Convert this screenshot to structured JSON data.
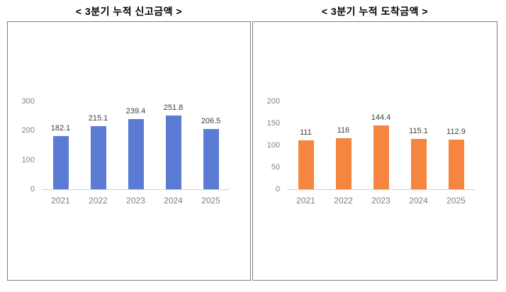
{
  "chart_data": [
    {
      "type": "bar",
      "title": "<  3분기  누적  신고금액  >",
      "categories": [
        "2021",
        "2022",
        "2023",
        "2024",
        "2025"
      ],
      "values": [
        182.1,
        215.1,
        239.4,
        251.8,
        206.5
      ],
      "value_labels": [
        "182.1",
        "215.1",
        "239.4",
        "251.8",
        "206.5"
      ],
      "ylim": [
        0,
        300
      ],
      "yticks": [
        0,
        100,
        200,
        300
      ],
      "bar_color": "#5b7bd5",
      "grid": false,
      "legend": "none"
    },
    {
      "type": "bar",
      "title": "<  3분기  누적  도착금액  >",
      "categories": [
        "2021",
        "2022",
        "2023",
        "2024",
        "2025"
      ],
      "values": [
        111,
        116,
        144.4,
        115.1,
        112.9
      ],
      "value_labels": [
        "111",
        "116",
        "144.4",
        "115.1",
        "112.9"
      ],
      "ylim": [
        0,
        200
      ],
      "yticks": [
        0,
        50,
        100,
        150,
        200
      ],
      "bar_color": "#f5853f",
      "grid": false,
      "legend": "none"
    }
  ]
}
